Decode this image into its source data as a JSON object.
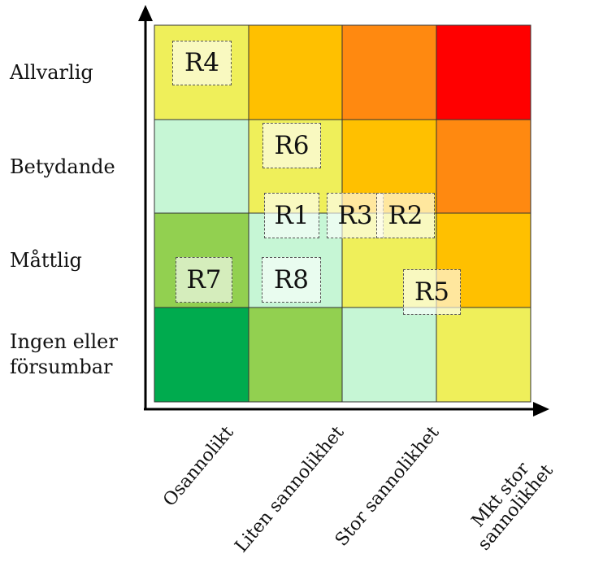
{
  "matrix": {
    "y_labels": [
      "Allvarlig",
      "Betydande",
      "Måttlig",
      "Ingen eller försumbar"
    ],
    "x_labels": [
      "Osannolikt",
      "Liten sannolikhet",
      "Stor sannolikhet",
      "Mkt stor sannolikhet"
    ],
    "colors": {
      "dark_green": "#00AB4E",
      "green": "#92D050",
      "mint": "#C6F6D5",
      "yellow": "#EFEF5A",
      "amber": "#FFC000",
      "orange": "#FF8910",
      "red": "#FF0000"
    },
    "cells": [
      [
        "yellow",
        "amber",
        "orange",
        "red"
      ],
      [
        "mint",
        "yellow",
        "amber",
        "orange"
      ],
      [
        "green",
        "mint",
        "yellow",
        "amber"
      ],
      [
        "dark_green",
        "green",
        "mint",
        "yellow"
      ]
    ]
  },
  "risks": [
    {
      "label": "R4"
    },
    {
      "label": "R6"
    },
    {
      "label": "R1"
    },
    {
      "label": "R3"
    },
    {
      "label": "R2"
    },
    {
      "label": "R7"
    },
    {
      "label": "R8"
    },
    {
      "label": "R5"
    }
  ]
}
